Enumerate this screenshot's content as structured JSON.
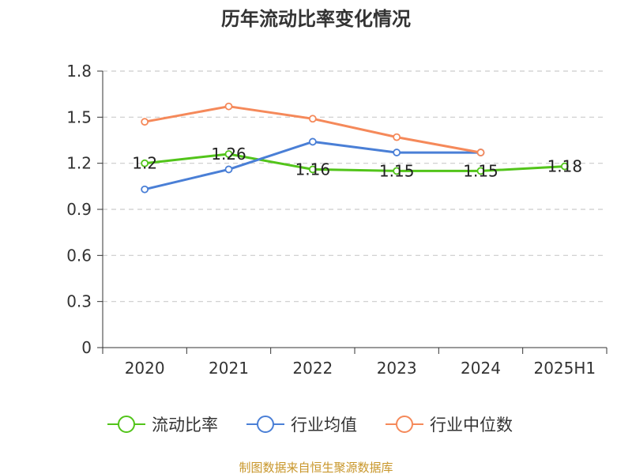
{
  "chart_data": {
    "type": "line",
    "title": "历年流动比率变化情况",
    "categories": [
      "2020",
      "2021",
      "2022",
      "2023",
      "2024",
      "2025H1"
    ],
    "ylim": [
      0,
      1.8
    ],
    "yticks": [
      "0",
      "0.3",
      "0.6",
      "0.9",
      "1.2",
      "1.5",
      "1.8"
    ],
    "grid": true,
    "legend_position": "bottom",
    "series": [
      {
        "name": "流动比率",
        "color": "#52c41a",
        "values": [
          1.2,
          1.26,
          1.16,
          1.15,
          1.15,
          1.18
        ],
        "labels": [
          "1.2",
          "1.26",
          "1.16",
          "1.15",
          "1.15",
          "1.18"
        ]
      },
      {
        "name": "行业均值",
        "color": "#4a7fd6",
        "values": [
          1.03,
          1.16,
          1.34,
          1.27,
          1.27,
          null
        ]
      },
      {
        "name": "行业中位数",
        "color": "#f5895a",
        "values": [
          1.47,
          1.57,
          1.49,
          1.37,
          1.27,
          null
        ]
      }
    ],
    "source": "制图数据来自恒生聚源数据库"
  }
}
